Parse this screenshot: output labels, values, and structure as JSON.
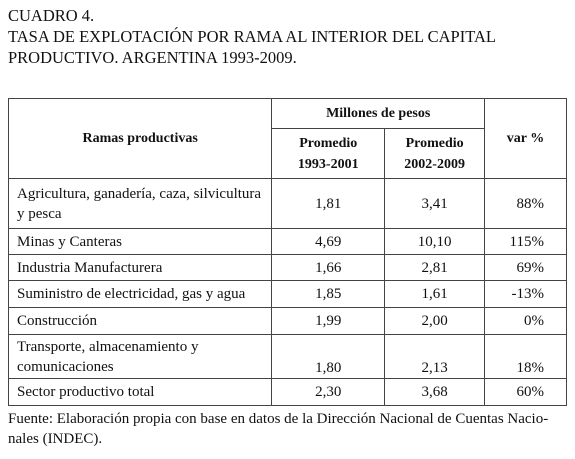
{
  "header": {
    "title_lines": [
      "CUADRO 4.",
      "TASA DE EXPLOTACIÓN POR RAMA AL INTERIOR DEL CAPITAL",
      "PRODUCTIVO. ARGENTINA 1993-2009."
    ]
  },
  "table": {
    "column_group": "Millones de pesos",
    "columns": [
      "Ramas productivas",
      [
        "Promedio",
        "1993-2001"
      ],
      [
        "Promedio",
        "2002-2009"
      ],
      "var %"
    ],
    "rows": [
      [
        [
          "Agricultura, ganadería, caza, silvicultura",
          "y pesca"
        ],
        "1,81",
        "3,41",
        "88%"
      ],
      [
        [
          "Minas y Canteras"
        ],
        "4,69",
        "10,10",
        "115%"
      ],
      [
        [
          "Industria Manufacturera"
        ],
        "1,66",
        "2,81",
        "69%"
      ],
      [
        [
          "Suministro de electricidad, gas y agua"
        ],
        "1,85",
        "1,61",
        "-13%"
      ],
      [
        [
          "Construcción"
        ],
        "1,99",
        "2,00",
        "0%"
      ],
      [
        [
          "Transporte, almacenamiento y",
          "comunicaciones"
        ],
        "1,80",
        "2,13",
        "18%"
      ],
      [
        [
          "Sector productivo total"
        ],
        "2,30",
        "3,68",
        "60%"
      ]
    ]
  },
  "footnote": [
    "Fuente: Elaboración propia con base en datos de la Dirección Nacional de Cuentas Nacio-",
    "nales (INDEC)."
  ]
}
